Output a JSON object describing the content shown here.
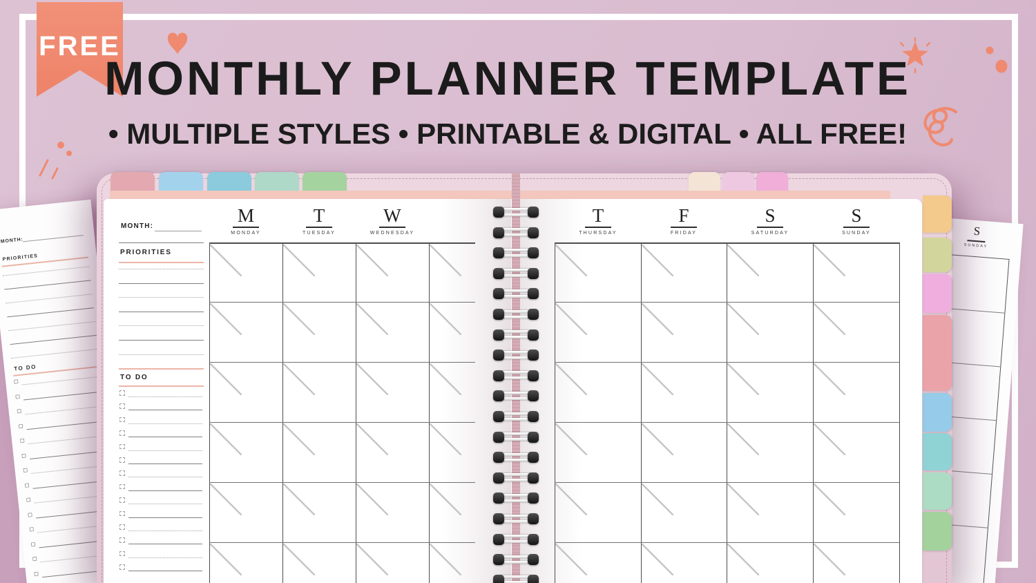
{
  "header": {
    "badge": "FREE",
    "title": "MONTHLY PLANNER TEMPLATE",
    "subtitle": "• MULTIPLE STYLES • PRINTABLE & DIGITAL • ALL FREE!"
  },
  "planner": {
    "month_label": "MONTH:",
    "priorities_label": "PRIORITIES",
    "todo_label": "TO DO",
    "left_day_headers": [
      {
        "letter": "M",
        "name": "MONDAY"
      },
      {
        "letter": "T",
        "name": "TUESDAY"
      },
      {
        "letter": "W",
        "name": "WEDNESDAY"
      }
    ],
    "right_day_headers": [
      {
        "letter": "T",
        "name": "THURSDAY"
      },
      {
        "letter": "F",
        "name": "FRIDAY"
      },
      {
        "letter": "S",
        "name": "SATURDAY"
      },
      {
        "letter": "S",
        "name": "SUNDAY"
      }
    ],
    "top_tabs_left_colors": [
      "#e4a9b0",
      "#a3d3ec",
      "#8ccbde",
      "#aed8c8",
      "#a4d3a0"
    ],
    "top_tabs_right_colors": [
      "#f3e4d6",
      "#eec8e0",
      "#f0aed9"
    ],
    "side_tab_colors": [
      "#f3c98c",
      "#d3d69c",
      "#efaede",
      "#eba3aa",
      "#96cbe9",
      "#8fd3d5",
      "#addcc4",
      "#a4d29c"
    ],
    "spiral_rings": 19
  },
  "loose_left_sheet": {
    "month_label": "MONTH:",
    "priorities_label": "PRIORITIES",
    "todo_label": "TO DO"
  },
  "loose_right_sheet": {
    "day_letter": "S",
    "day_name": "SUNDAY"
  },
  "colors": {
    "background": "#dcc0d2",
    "accent_coral": "#ef8a70",
    "badge_text": "#ffffff",
    "title_text": "#1b1b1b"
  }
}
